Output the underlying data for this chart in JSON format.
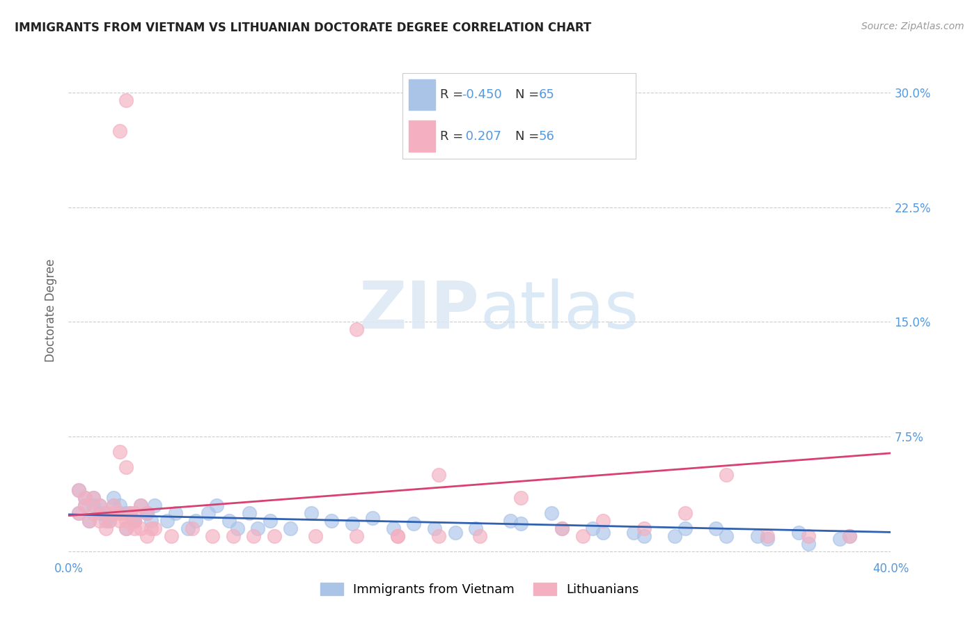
{
  "title": "IMMIGRANTS FROM VIETNAM VS LITHUANIAN DOCTORATE DEGREE CORRELATION CHART",
  "source": "Source: ZipAtlas.com",
  "ylabel": "Doctorate Degree",
  "xlim": [
    0.0,
    0.4
  ],
  "ylim": [
    -0.005,
    0.32
  ],
  "yticks": [
    0.0,
    0.075,
    0.15,
    0.225,
    0.3
  ],
  "ytick_labels": [
    "",
    "7.5%",
    "15.0%",
    "22.5%",
    "30.0%"
  ],
  "xticks": [
    0.0,
    0.1,
    0.2,
    0.3,
    0.4
  ],
  "xtick_labels": [
    "0.0%",
    "",
    "",
    "",
    "40.0%"
  ],
  "blue_R": -0.45,
  "blue_N": 65,
  "pink_R": 0.207,
  "pink_N": 56,
  "blue_color": "#aac4e8",
  "pink_color": "#f4afc0",
  "blue_line_color": "#3060b0",
  "pink_line_color": "#d84070",
  "background_color": "#ffffff",
  "legend_label_blue": "Immigrants from Vietnam",
  "legend_label_pink": "Lithuanians",
  "blue_x": [
    0.005,
    0.008,
    0.01,
    0.012,
    0.015,
    0.018,
    0.02,
    0.022,
    0.025,
    0.028,
    0.03,
    0.032,
    0.035,
    0.038,
    0.04,
    0.005,
    0.008,
    0.012,
    0.015,
    0.018,
    0.022,
    0.025,
    0.028,
    0.032,
    0.038,
    0.042,
    0.048,
    0.052,
    0.058,
    0.062,
    0.068,
    0.072,
    0.078,
    0.082,
    0.088,
    0.092,
    0.098,
    0.108,
    0.118,
    0.128,
    0.138,
    0.148,
    0.158,
    0.168,
    0.178,
    0.188,
    0.198,
    0.215,
    0.235,
    0.255,
    0.275,
    0.295,
    0.315,
    0.335,
    0.355,
    0.375,
    0.22,
    0.24,
    0.26,
    0.28,
    0.3,
    0.32,
    0.34,
    0.36,
    0.38
  ],
  "blue_y": [
    0.025,
    0.03,
    0.02,
    0.035,
    0.03,
    0.025,
    0.02,
    0.03,
    0.025,
    0.015,
    0.025,
    0.02,
    0.03,
    0.025,
    0.02,
    0.04,
    0.035,
    0.03,
    0.025,
    0.02,
    0.035,
    0.03,
    0.025,
    0.02,
    0.025,
    0.03,
    0.02,
    0.025,
    0.015,
    0.02,
    0.025,
    0.03,
    0.02,
    0.015,
    0.025,
    0.015,
    0.02,
    0.015,
    0.025,
    0.02,
    0.018,
    0.022,
    0.015,
    0.018,
    0.015,
    0.012,
    0.015,
    0.02,
    0.025,
    0.015,
    0.012,
    0.01,
    0.015,
    0.01,
    0.012,
    0.008,
    0.018,
    0.015,
    0.012,
    0.01,
    0.015,
    0.01,
    0.008,
    0.005,
    0.01
  ],
  "pink_x": [
    0.005,
    0.008,
    0.01,
    0.012,
    0.015,
    0.018,
    0.02,
    0.022,
    0.025,
    0.028,
    0.03,
    0.032,
    0.035,
    0.038,
    0.04,
    0.005,
    0.008,
    0.012,
    0.015,
    0.018,
    0.022,
    0.025,
    0.028,
    0.032,
    0.038,
    0.025,
    0.028,
    0.032,
    0.035,
    0.042,
    0.05,
    0.06,
    0.07,
    0.08,
    0.09,
    0.1,
    0.12,
    0.14,
    0.16,
    0.18,
    0.025,
    0.028,
    0.18,
    0.32,
    0.22,
    0.24,
    0.26,
    0.28,
    0.3,
    0.34,
    0.36,
    0.38,
    0.14,
    0.16,
    0.2,
    0.25
  ],
  "pink_y": [
    0.025,
    0.03,
    0.02,
    0.035,
    0.03,
    0.025,
    0.02,
    0.03,
    0.025,
    0.02,
    0.025,
    0.02,
    0.03,
    0.025,
    0.015,
    0.04,
    0.035,
    0.025,
    0.02,
    0.015,
    0.025,
    0.02,
    0.015,
    0.015,
    0.01,
    0.065,
    0.055,
    0.025,
    0.015,
    0.015,
    0.01,
    0.015,
    0.01,
    0.01,
    0.01,
    0.01,
    0.01,
    0.01,
    0.01,
    0.01,
    0.275,
    0.295,
    0.05,
    0.05,
    0.035,
    0.015,
    0.02,
    0.015,
    0.025,
    0.01,
    0.01,
    0.01,
    0.145,
    0.01,
    0.01,
    0.01
  ]
}
